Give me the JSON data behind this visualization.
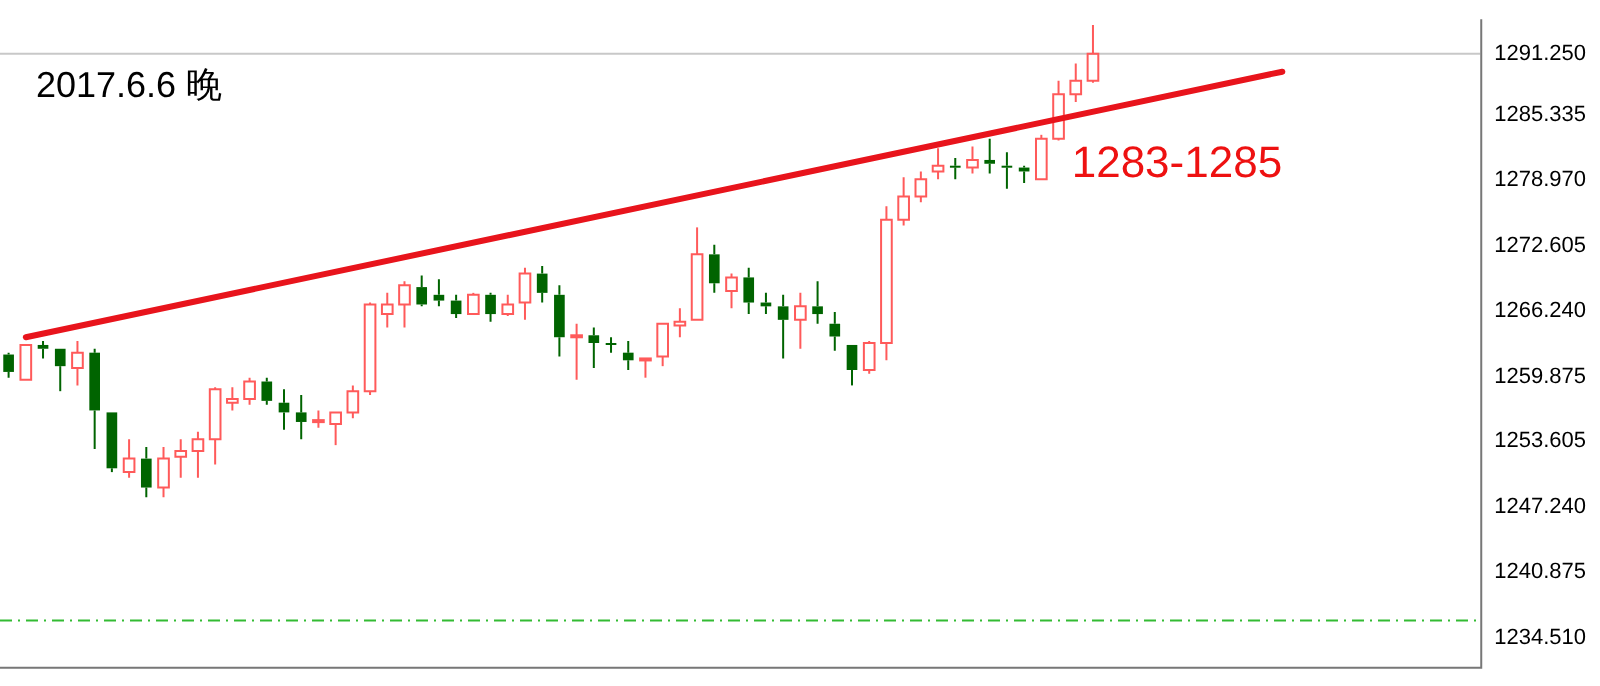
{
  "chart_data": {
    "type": "candlestick",
    "title": "2017.6.6 晚",
    "annotations": [
      "1283-1285"
    ],
    "categories": [
      null,
      null,
      null,
      null,
      null,
      null,
      null,
      null,
      null,
      null,
      null,
      null,
      null,
      null,
      null,
      null,
      null,
      null,
      null,
      null,
      null,
      null,
      null,
      null,
      null,
      null,
      null,
      null,
      null,
      null,
      null,
      null,
      null,
      null,
      null,
      null,
      null,
      null,
      null,
      null,
      null,
      null,
      null,
      null,
      null,
      null,
      null,
      null,
      null,
      null,
      null,
      null,
      null,
      null,
      null,
      null,
      null,
      null,
      null,
      null,
      null,
      null,
      null,
      null,
      null,
      null,
      null,
      null,
      null,
      null,
      null,
      null,
      null,
      null,
      null,
      null,
      null,
      null,
      null,
      null,
      null,
      null,
      null,
      null,
      null,
      null
    ],
    "ohlc": [
      [
        1262.03,
        1262.21,
        1259.78,
        1260.34
      ],
      [
        1259.59,
        1262.96,
        1259.59,
        1262.96
      ],
      [
        1262.96,
        1263.34,
        1261.65,
        1262.59
      ],
      [
        1262.59,
        1262.59,
        1258.47,
        1260.9
      ],
      [
        1260.72,
        1263.34,
        1259.03,
        1262.21
      ],
      [
        1262.21,
        1262.59,
        1252.85,
        1256.6
      ],
      [
        1256.41,
        1256.41,
        1250.61,
        1250.98
      ],
      [
        1250.61,
        1253.79,
        1250.05,
        1251.92
      ],
      [
        1251.92,
        1253.04,
        1248.17,
        1249.11
      ],
      [
        1249.11,
        1253.04,
        1248.17,
        1251.92
      ],
      [
        1252.11,
        1253.79,
        1250.05,
        1252.67
      ],
      [
        1252.67,
        1254.54,
        1250.05,
        1253.79
      ],
      [
        1253.79,
        1258.84,
        1251.36,
        1258.66
      ],
      [
        1257.35,
        1258.84,
        1256.6,
        1257.72
      ],
      [
        1257.72,
        1259.78,
        1257.16,
        1259.41
      ],
      [
        1259.41,
        1259.78,
        1257.16,
        1257.53
      ],
      [
        1257.35,
        1258.66,
        1254.73,
        1256.41
      ],
      [
        1256.41,
        1258.1,
        1253.79,
        1255.48
      ],
      [
        1255.48,
        1256.6,
        1254.91,
        1255.66
      ],
      [
        1255.29,
        1256.41,
        1253.23,
        1256.41
      ],
      [
        1256.41,
        1259.03,
        1255.85,
        1258.47
      ],
      [
        1258.47,
        1267.08,
        1258.1,
        1266.89
      ],
      [
        1265.96,
        1268.02,
        1264.65,
        1266.89
      ],
      [
        1266.89,
        1269.14,
        1264.65,
        1268.77
      ],
      [
        1268.58,
        1269.7,
        1266.71,
        1266.89
      ],
      [
        1267.83,
        1269.33,
        1266.71,
        1267.27
      ],
      [
        1267.27,
        1267.83,
        1265.58,
        1265.96
      ],
      [
        1265.96,
        1268.02,
        1265.96,
        1267.83
      ],
      [
        1267.83,
        1268.02,
        1265.21,
        1265.96
      ],
      [
        1265.96,
        1267.83,
        1265.77,
        1266.89
      ],
      [
        1267.08,
        1270.45,
        1265.4,
        1269.89
      ],
      [
        1269.89,
        1270.64,
        1267.08,
        1268.02
      ],
      [
        1267.83,
        1268.77,
        1261.84,
        1263.71
      ],
      [
        1263.71,
        1265.02,
        1259.59,
        1263.9
      ],
      [
        1263.9,
        1264.65,
        1260.72,
        1263.15
      ],
      [
        1263.15,
        1263.71,
        1262.21,
        1262.96
      ],
      [
        1262.21,
        1263.34,
        1260.53,
        1261.47
      ],
      [
        1261.47,
        1261.65,
        1259.78,
        1261.65
      ],
      [
        1261.84,
        1265.02,
        1260.9,
        1265.02
      ],
      [
        1264.84,
        1266.52,
        1263.71,
        1265.21
      ],
      [
        1265.4,
        1274.38,
        1265.4,
        1271.76
      ],
      [
        1271.76,
        1272.7,
        1268.02,
        1268.95
      ],
      [
        1268.2,
        1269.89,
        1266.52,
        1269.52
      ],
      [
        1269.52,
        1270.45,
        1265.96,
        1267.08
      ],
      [
        1267.08,
        1268.02,
        1265.96,
        1266.71
      ],
      [
        1266.71,
        1267.83,
        1261.65,
        1265.4
      ],
      [
        1265.4,
        1268.02,
        1262.59,
        1266.71
      ],
      [
        1266.71,
        1269.14,
        1265.02,
        1265.96
      ],
      [
        1265.02,
        1266.15,
        1262.4,
        1263.78
      ],
      [
        1262.96,
        1262.96,
        1259.03,
        1260.53
      ],
      [
        1260.53,
        1263.34,
        1260.16,
        1263.15
      ],
      [
        1263.15,
        1276.44,
        1261.47,
        1275.13
      ],
      [
        1275.13,
        1279.25,
        1274.57,
        1277.38
      ],
      [
        1277.38,
        1279.81,
        1276.82,
        1279.06
      ],
      [
        1279.81,
        1282.06,
        1279.06,
        1280.37
      ],
      [
        1280.37,
        1281.12,
        1279.06,
        1280.19
      ],
      [
        1280.19,
        1282.24,
        1279.62,
        1280.93
      ],
      [
        1280.93,
        1283.0,
        1279.62,
        1280.56
      ],
      [
        1280.37,
        1281.68,
        1278.13,
        1280.19
      ],
      [
        1280.19,
        1280.37,
        1278.69,
        1279.81
      ],
      [
        1279.06,
        1283.37,
        1279.06,
        1282.99
      ],
      [
        1282.99,
        1288.61,
        1282.81,
        1287.3
      ],
      [
        1287.3,
        1290.29,
        1286.55,
        1288.61
      ],
      [
        1288.61,
        1294.04,
        1288.42,
        1291.25
      ],
      null,
      null,
      null,
      null,
      null,
      null,
      null,
      null,
      null,
      null,
      null,
      null,
      null,
      null,
      null,
      null,
      null,
      null,
      null,
      null,
      null,
      null
    ],
    "colors": [
      "#006400",
      "#ff5a5a",
      "#006400",
      "#006400",
      "#ff5a5a",
      "#006400",
      "#006400",
      "#ff5a5a",
      "#006400",
      "#ff5a5a",
      "#ff5a5a",
      "#ff5a5a",
      "#ff5a5a",
      "#ff5a5a",
      "#ff5a5a",
      "#006400",
      "#006400",
      "#006400",
      "#ff5a5a",
      "#ff5a5a",
      "#ff5a5a",
      "#ff5a5a",
      "#ff5a5a",
      "#ff5a5a",
      "#006400",
      "#006400",
      "#006400",
      "#ff5a5a",
      "#006400",
      "#ff5a5a",
      "#ff5a5a",
      "#006400",
      "#006400",
      "#ff5a5a",
      "#006400",
      "#006400",
      "#006400",
      "#ff5a5a",
      "#ff5a5a",
      "#ff5a5a",
      "#ff5a5a",
      "#006400",
      "#ff5a5a",
      "#006400",
      "#006400",
      "#006400",
      "#ff5a5a",
      "#006400",
      "#006400",
      "#006400",
      "#ff5a5a",
      "#ff5a5a",
      "#ff5a5a",
      "#ff5a5a",
      "#ff5a5a",
      "#006400",
      "#ff5a5a",
      "#006400",
      "#006400",
      "#006400",
      "#ff5a5a",
      "#ff5a5a",
      "#ff5a5a",
      "#ff5a5a",
      null,
      null,
      null,
      null,
      null,
      null,
      null,
      null,
      null,
      null,
      null,
      null,
      null,
      null,
      null,
      null,
      null,
      null,
      null,
      null,
      null,
      null
    ],
    "series": [
      {
        "type": "line",
        "color": "#e8141c",
        "values": [
          null,
          1263.71,
          null,
          null,
          null,
          null,
          null,
          null,
          null,
          null,
          null,
          null,
          null,
          null,
          null,
          null,
          null,
          null,
          null,
          null,
          null,
          null,
          null,
          null,
          null,
          null,
          null,
          null,
          null,
          null,
          null,
          null,
          null,
          null,
          null,
          null,
          null,
          null,
          null,
          null,
          null,
          null,
          null,
          null,
          null,
          null,
          null,
          null,
          null,
          null,
          null,
          null,
          null,
          null,
          null,
          null,
          null,
          null,
          null,
          null,
          null,
          null,
          null,
          null,
          null,
          null,
          null,
          null,
          null,
          null,
          null,
          null,
          null,
          null,
          1289.5,
          null,
          null,
          null,
          null,
          null,
          null,
          null,
          null,
          null,
          null,
          null
        ]
      }
    ],
    "ylim": [
      1231.7,
      1294.6
    ],
    "yticks": [
      {
        "value": 1234.51,
        "label": "1234.510"
      },
      {
        "value": 1240.875,
        "label": "1240.875"
      },
      {
        "value": 1247.24,
        "label": "1247.240"
      },
      {
        "value": 1253.605,
        "label": "1253.605"
      },
      {
        "value": 1259.875,
        "label": "1259.875"
      },
      {
        "value": 1266.24,
        "label": "1266.240"
      },
      {
        "value": 1272.605,
        "label": "1272.605"
      },
      {
        "value": 1278.97,
        "label": "1278.970"
      },
      {
        "value": 1285.335,
        "label": "1285.335"
      },
      {
        "value": 1291.25,
        "label": "1291.250"
      }
    ],
    "ref_lines": [
      {
        "axis": "y",
        "value": 1291.25,
        "color": "#c8c8c8",
        "line_style": "solid"
      },
      {
        "axis": "y",
        "value": 1236.19,
        "color": "#33bb33",
        "line_style": "dashed"
      }
    ],
    "tick_labels": "y",
    "grid": false,
    "legend": false
  }
}
